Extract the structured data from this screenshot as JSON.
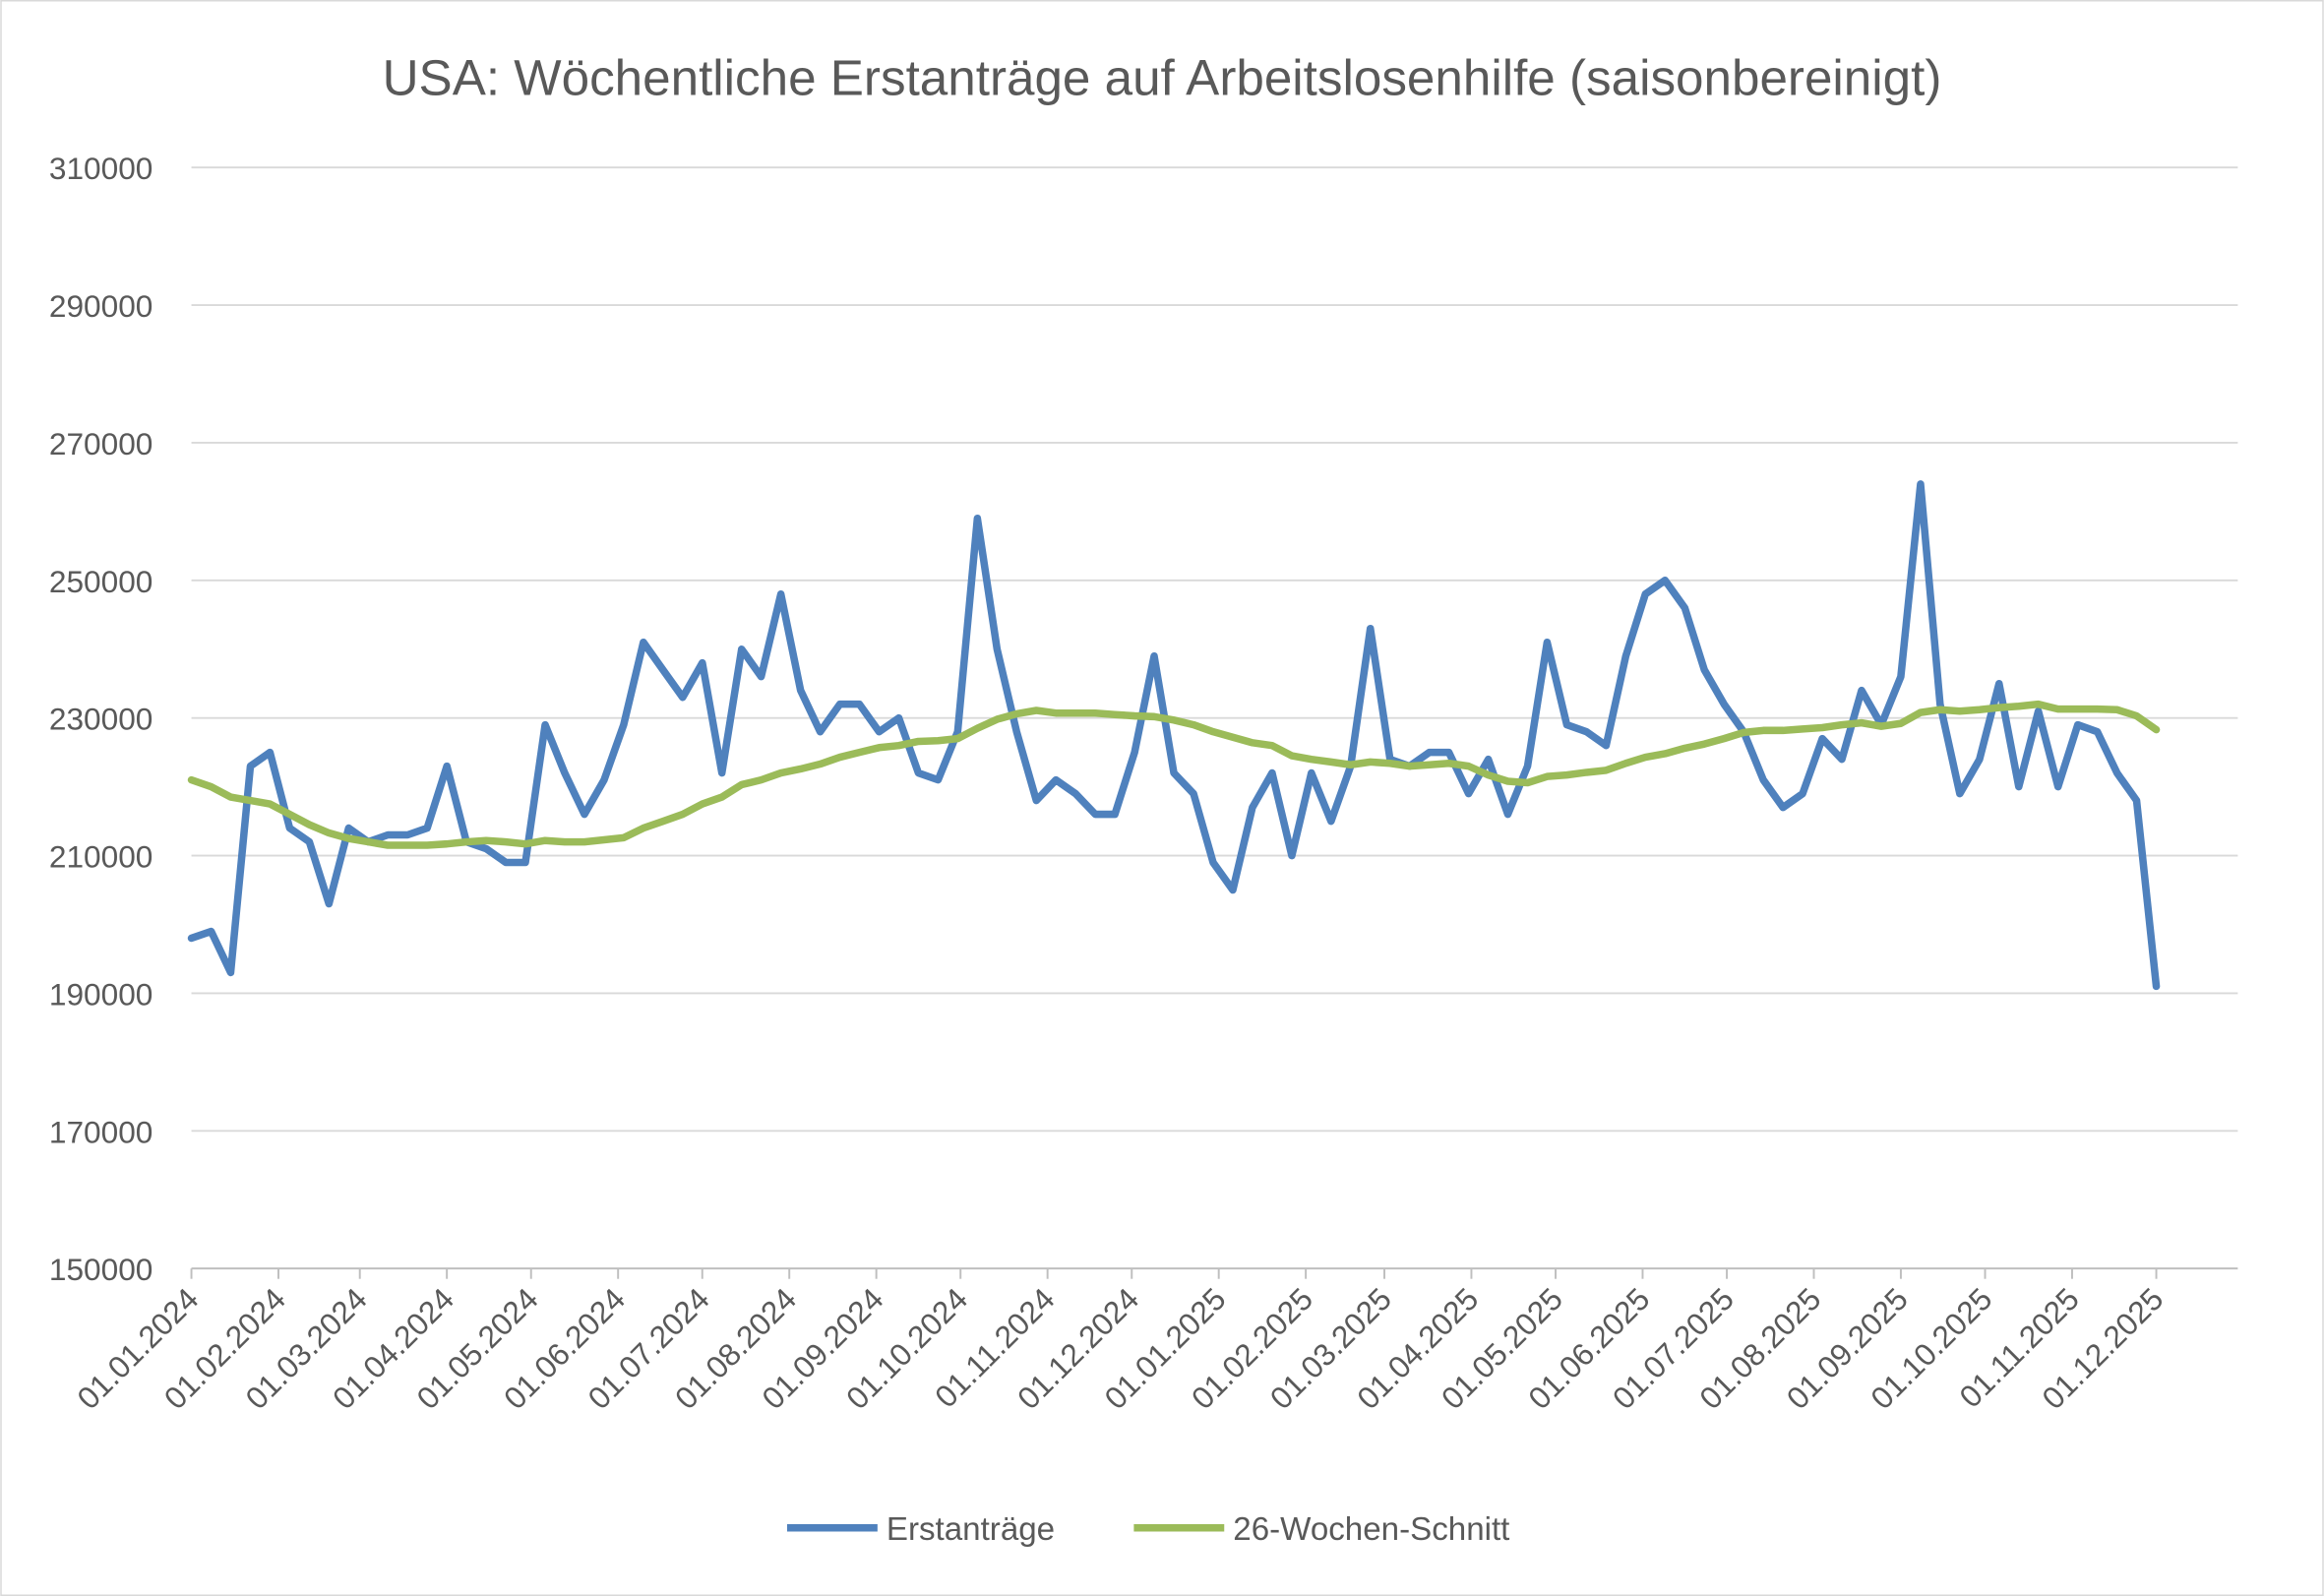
{
  "chart_data": {
    "type": "line",
    "title": "USA: Wöchentliche Erstanträge auf Arbeitslosenhilfe (saisonbereinigt)",
    "xlabel": "",
    "ylabel": "",
    "ylim": [
      150000,
      310000
    ],
    "yticks": [
      "150000",
      "170000",
      "190000",
      "210000",
      "230000",
      "250000",
      "270000",
      "290000",
      "310000"
    ],
    "xticks": [
      "01.01.2024",
      "01.02.2024",
      "01.03.2024",
      "01.04.2024",
      "01.05.2024",
      "01.06.2024",
      "01.07.2024",
      "01.08.2024",
      "01.09.2024",
      "01.10.2024",
      "01.11.2024",
      "01.12.2024",
      "01.01.2025",
      "01.02.2025",
      "01.03.2025",
      "01.04.2025",
      "01.05.2025",
      "01.06.2025",
      "01.07.2025",
      "01.08.2025",
      "01.09.2025",
      "01.10.2025",
      "01.11.2025",
      "01.12.2025"
    ],
    "xlim": [
      "2024-01-01",
      "2025-12-01"
    ],
    "grid": "horizontal",
    "legend_position": "bottom",
    "x": [
      "2024-01-01",
      "2024-01-08",
      "2024-01-15",
      "2024-01-22",
      "2024-01-29",
      "2024-02-05",
      "2024-02-12",
      "2024-02-19",
      "2024-02-26",
      "2024-03-04",
      "2024-03-11",
      "2024-03-18",
      "2024-03-25",
      "2024-04-01",
      "2024-04-08",
      "2024-04-15",
      "2024-04-22",
      "2024-04-29",
      "2024-05-06",
      "2024-05-13",
      "2024-05-20",
      "2024-05-27",
      "2024-06-03",
      "2024-06-10",
      "2024-06-17",
      "2024-06-24",
      "2024-07-01",
      "2024-07-08",
      "2024-07-15",
      "2024-07-22",
      "2024-07-29",
      "2024-08-05",
      "2024-08-12",
      "2024-08-19",
      "2024-08-26",
      "2024-09-02",
      "2024-09-09",
      "2024-09-16",
      "2024-09-23",
      "2024-09-30",
      "2024-10-07",
      "2024-10-14",
      "2024-10-21",
      "2024-10-28",
      "2024-11-04",
      "2024-11-11",
      "2024-11-18",
      "2024-11-25",
      "2024-12-02",
      "2024-12-09",
      "2024-12-16",
      "2024-12-23",
      "2024-12-30",
      "2025-01-06",
      "2025-01-13",
      "2025-01-20",
      "2025-01-27",
      "2025-02-03",
      "2025-02-10",
      "2025-02-17",
      "2025-02-24",
      "2025-03-03",
      "2025-03-10",
      "2025-03-17",
      "2025-03-24",
      "2025-03-31",
      "2025-04-07",
      "2025-04-14",
      "2025-04-21",
      "2025-04-28",
      "2025-05-05",
      "2025-05-12",
      "2025-05-19",
      "2025-05-26",
      "2025-06-02",
      "2025-06-09",
      "2025-06-16",
      "2025-06-23",
      "2025-06-30",
      "2025-07-07",
      "2025-07-14",
      "2025-07-21",
      "2025-07-28",
      "2025-08-04",
      "2025-08-11",
      "2025-08-18",
      "2025-08-25",
      "2025-09-01",
      "2025-09-08",
      "2025-09-15",
      "2025-09-22",
      "2025-09-29",
      "2025-10-06",
      "2025-10-13",
      "2025-10-20",
      "2025-10-27",
      "2025-11-03",
      "2025-11-10",
      "2025-11-17",
      "2025-11-24",
      "2025-12-01"
    ],
    "series": [
      {
        "name": "Erstanträge",
        "color": "#4f81bd",
        "values": [
          198000,
          199000,
          193000,
          223000,
          225000,
          214000,
          212000,
          203000,
          214000,
          212000,
          213000,
          213000,
          214000,
          223000,
          212000,
          211000,
          209000,
          209000,
          229000,
          222000,
          216000,
          221000,
          229000,
          241000,
          237000,
          233000,
          238000,
          222000,
          240000,
          236000,
          248000,
          234000,
          228000,
          232000,
          232000,
          228000,
          230000,
          222000,
          221000,
          228000,
          259000,
          240000,
          228000,
          218000,
          221000,
          219000,
          216000,
          216000,
          225000,
          239000,
          222000,
          219000,
          209000,
          205000,
          217000,
          222000,
          210000,
          222000,
          215000,
          223000,
          243000,
          224000,
          223000,
          225000,
          225000,
          219000,
          224000,
          216000,
          223000,
          241000,
          229000,
          228000,
          226000,
          239000,
          248000,
          250000,
          246000,
          237000,
          232000,
          228000,
          221000,
          217000,
          219000,
          227000,
          224000,
          234000,
          229000,
          236000,
          264000,
          232000,
          219000,
          224000,
          235000,
          220000,
          231000,
          220000,
          229000,
          228000,
          222000,
          218000,
          191000
        ]
      },
      {
        "name": "26-Wochen-Schnitt",
        "color": "#9bbb59",
        "values": [
          221000,
          220000,
          218500,
          218000,
          217500,
          216000,
          214500,
          213300,
          212500,
          212000,
          211500,
          211500,
          211500,
          211700,
          212000,
          212200,
          212000,
          211700,
          212200,
          212000,
          212000,
          212300,
          212600,
          214000,
          215000,
          216000,
          217500,
          218500,
          220300,
          221000,
          222000,
          222600,
          223300,
          224300,
          225000,
          225700,
          226000,
          226600,
          226700,
          227000,
          228500,
          229800,
          230600,
          231100,
          230700,
          230700,
          230700,
          230500,
          230300,
          230200,
          229700,
          229000,
          228000,
          227200,
          226400,
          226000,
          224500,
          224000,
          223600,
          223200,
          223600,
          223400,
          223000,
          223200,
          223400,
          223000,
          221700,
          220800,
          220600,
          221500,
          221700,
          222100,
          222400,
          223400,
          224300,
          224800,
          225600,
          226200,
          227000,
          227900,
          228200,
          228200,
          228400,
          228600,
          229000,
          229300,
          228800,
          229200,
          230800,
          231200,
          231000,
          231200,
          231500,
          231700,
          232000,
          231300,
          231300,
          231300,
          231200,
          230300,
          228300
        ]
      }
    ]
  }
}
